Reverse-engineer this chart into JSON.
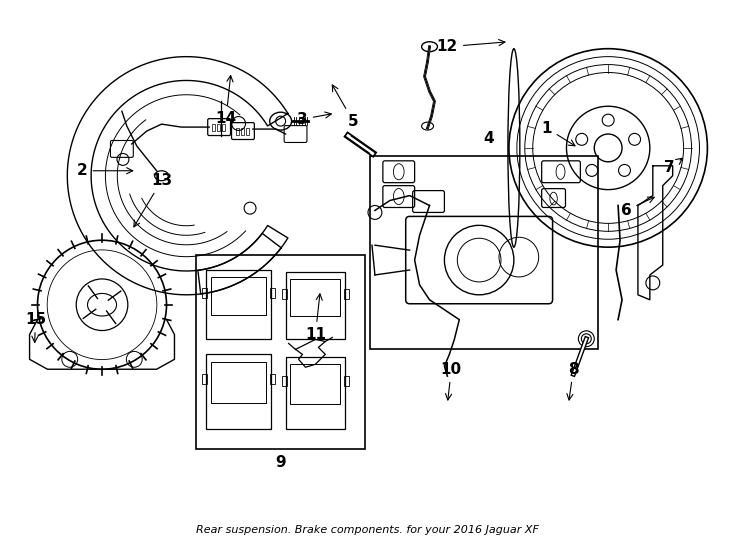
{
  "title": "Rear suspension. Brake components. for your 2016 Jaguar XF",
  "bg_color": "#ffffff",
  "line_color": "#000000",
  "figsize": [
    7.34,
    5.4
  ],
  "dpi": 100,
  "lw": 1.0
}
